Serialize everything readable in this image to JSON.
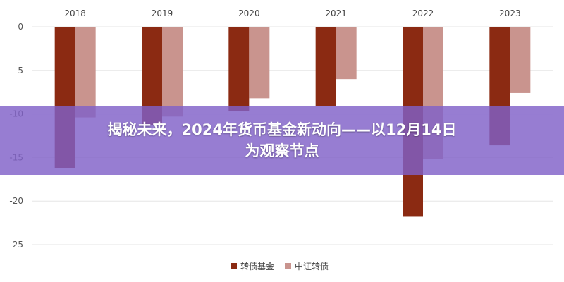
{
  "banner": {
    "line1": "揭秘未来，2024年货币基金新动向——以12月14日",
    "line2": "为观察节点",
    "background": "#8060c8",
    "text_color": "#ffffff"
  },
  "chart_data": {
    "type": "bar",
    "categories": [
      "2018",
      "2019",
      "2020",
      "2021",
      "2022",
      "2023"
    ],
    "series": [
      {
        "name": "转债基金",
        "color": "#8b2a12",
        "values": [
          -16.2,
          -11.3,
          -9.7,
          -9.1,
          -21.8,
          -13.6
        ]
      },
      {
        "name": "中证转债",
        "color": "#c9948e",
        "values": [
          -10.4,
          -10.3,
          -8.2,
          -6.0,
          -15.2,
          -7.6
        ]
      }
    ],
    "ylim": [
      -25,
      0
    ],
    "yticks": [
      0,
      -5,
      -10,
      -15,
      -20,
      -25
    ],
    "ytick_labels": [
      "0",
      "-5",
      "-10",
      "-15",
      "-20",
      "-25"
    ],
    "category_axis_position": "top",
    "grid": true,
    "grid_color": "#e6e6e6",
    "legend": {
      "position": "bottom-center"
    },
    "title": "",
    "xlabel": "",
    "ylabel": ""
  }
}
